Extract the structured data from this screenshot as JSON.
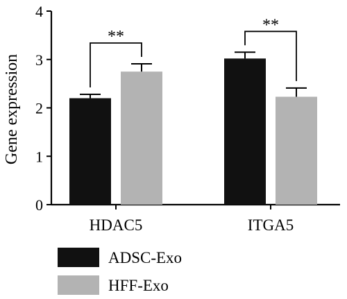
{
  "chart_data": {
    "type": "bar",
    "categories": [
      "HDAC5",
      "ITGA5"
    ],
    "series": [
      {
        "name": "ADSC-Exo",
        "color": "#111111",
        "values": [
          2.2,
          3.02
        ],
        "errors": [
          0.08,
          0.13
        ]
      },
      {
        "name": "HFF-Exo",
        "color": "#b3b3b3",
        "values": [
          2.75,
          2.23
        ],
        "errors": [
          0.16,
          0.18
        ]
      }
    ],
    "title": "",
    "xlabel": "",
    "ylabel": "Gene expression",
    "ylim": [
      0,
      4
    ],
    "yticks": [
      "0",
      "1",
      "2",
      "3",
      "4"
    ],
    "significance": [
      {
        "category": "HDAC5",
        "label": "**"
      },
      {
        "category": "ITGA5",
        "label": "**"
      }
    ],
    "grid": false,
    "legend_position": "bottom-left"
  }
}
